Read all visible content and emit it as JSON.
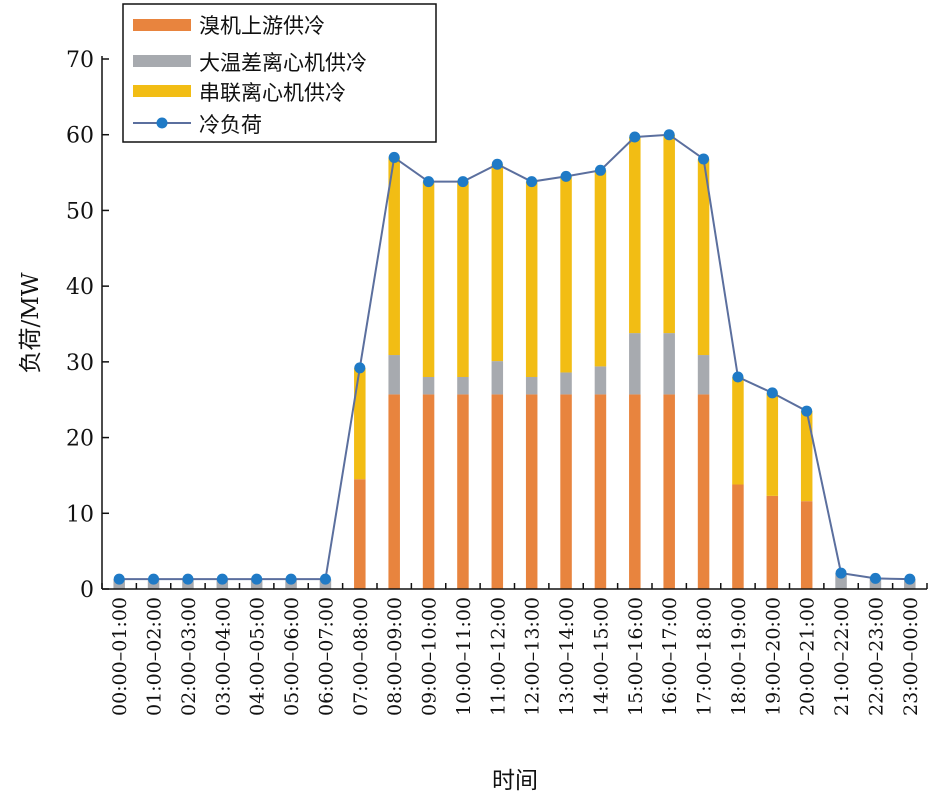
{
  "colors": {
    "upstream": "#E8843E",
    "large_temp_diff": "#A7AAAF",
    "series": "#F2BD14",
    "load_line": "#5B6F9E",
    "load_marker": "#1F7AC6"
  },
  "chart_data": {
    "type": "bar",
    "stacked": true,
    "title": "",
    "xlabel": "时间",
    "ylabel": "负荷/MW",
    "ylim": [
      0,
      70
    ],
    "yticks": [
      0,
      10,
      20,
      30,
      40,
      50,
      60,
      70
    ],
    "legend_position": "top-left",
    "categories": [
      "00:00–01:00",
      "01:00–02:00",
      "02:00–03:00",
      "03:00–04:00",
      "04:00–05:00",
      "05:00–06:00",
      "06:00–07:00",
      "07:00–08:00",
      "08:00–09:00",
      "09:00–10:00",
      "10:00–11:00",
      "11:00–12:00",
      "12:00–13:00",
      "13:00–14:00",
      "14:00–15:00",
      "15:00–16:00",
      "16:00–17:00",
      "17:00–18:00",
      "18:00–19:00",
      "19:00–20:00",
      "20:00–21:00",
      "21:00–22:00",
      "22:00–23:00",
      "23:00–00:00"
    ],
    "series": [
      {
        "name": "溴机上游供冷",
        "kind": "bar",
        "color_key": "upstream",
        "values": [
          0,
          0,
          0,
          0,
          0,
          0,
          0,
          14.5,
          25.7,
          25.7,
          25.7,
          25.7,
          25.7,
          25.7,
          25.7,
          25.7,
          25.7,
          25.7,
          13.8,
          12.3,
          11.6,
          0,
          0,
          0
        ]
      },
      {
        "name": "大温差离心机供冷",
        "kind": "bar",
        "color_key": "large_temp_diff",
        "values": [
          1.3,
          1.3,
          1.3,
          1.3,
          1.3,
          1.3,
          1.3,
          0,
          5.2,
          2.3,
          2.3,
          4.4,
          2.3,
          2.9,
          3.7,
          8.1,
          8.1,
          5.2,
          0,
          0,
          0,
          2.1,
          1.4,
          1.3
        ]
      },
      {
        "name": "串联离心机供冷",
        "kind": "bar",
        "color_key": "series",
        "values": [
          0,
          0,
          0,
          0,
          0,
          0,
          0,
          14.7,
          26.1,
          25.8,
          25.8,
          26.0,
          25.8,
          25.9,
          25.9,
          25.9,
          26.2,
          25.9,
          14.2,
          13.6,
          11.9,
          0,
          0,
          0
        ]
      },
      {
        "name": "冷负荷",
        "kind": "line",
        "color_key": "load_line",
        "values": [
          1.3,
          1.3,
          1.3,
          1.3,
          1.3,
          1.3,
          1.3,
          29.2,
          57.0,
          53.8,
          53.8,
          56.1,
          53.8,
          54.5,
          55.3,
          59.7,
          60.0,
          56.8,
          28.0,
          25.9,
          23.5,
          2.1,
          1.4,
          1.3
        ]
      }
    ]
  }
}
